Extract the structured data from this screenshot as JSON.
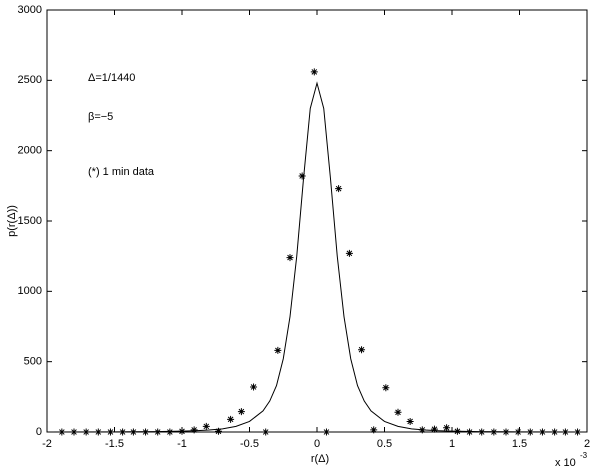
{
  "chart_data": {
    "type": "scatter",
    "xlabel": "r(Δ)",
    "ylabel": "p(r(Δ))",
    "x_scale_base": "x 10",
    "x_scale_exponent": "-3",
    "annotations": [
      "Δ=1/1440",
      "β=−5",
      "(*) 1 min data"
    ],
    "xlim": [
      -2,
      2
    ],
    "xticks": [
      -2,
      -1.5,
      -1,
      -0.5,
      0,
      0.5,
      1,
      1.5,
      2
    ],
    "ylim": [
      0,
      3000
    ],
    "yticks": [
      0,
      500,
      1000,
      1500,
      2000,
      2500,
      3000
    ],
    "series": [
      {
        "type": "scatter",
        "color": "#000000",
        "x": [
          -1.89,
          -1.8,
          -1.71,
          -1.62,
          -1.53,
          -1.44,
          -1.36,
          -1.27,
          -1.18,
          -1.09,
          -1.0,
          -0.91,
          -0.82,
          -0.73,
          -0.64,
          -0.56,
          -0.47,
          -0.38,
          -0.29,
          -0.2,
          -0.11,
          -0.02,
          0.07,
          0.16,
          0.24,
          0.33,
          0.42,
          0.51,
          0.6,
          0.69,
          0.78,
          0.87,
          0.96,
          1.04,
          1.13,
          1.22,
          1.31,
          1.4,
          1.49,
          1.58,
          1.67,
          1.76,
          1.84,
          1.93
        ],
        "values": [
          0,
          0,
          0,
          0,
          0,
          0,
          0,
          0,
          0,
          0,
          5,
          15,
          40,
          5,
          90,
          145,
          320,
          0,
          580,
          1240,
          1820,
          2560,
          0,
          1730,
          1270,
          585,
          15,
          315,
          140,
          75,
          15,
          20,
          30,
          5,
          0,
          0,
          0,
          0,
          0,
          0,
          0,
          0,
          0,
          0
        ]
      },
      {
        "type": "line",
        "color": "#000000",
        "x": [
          -2,
          -1.5,
          -1.2,
          -1,
          -0.9,
          -0.8,
          -0.7,
          -0.6,
          -0.5,
          -0.4,
          -0.35,
          -0.3,
          -0.25,
          -0.2,
          -0.15,
          -0.1,
          -0.05,
          0,
          0.05,
          0.1,
          0.15,
          0.2,
          0.25,
          0.3,
          0.35,
          0.4,
          0.5,
          0.6,
          0.7,
          0.8,
          0.9,
          1,
          1.2,
          1.5,
          2
        ],
        "values": [
          0,
          1,
          3,
          6,
          9,
          14,
          22,
          40,
          75,
          150,
          220,
          330,
          520,
          820,
          1250,
          1800,
          2300,
          2480,
          2300,
          1800,
          1250,
          820,
          520,
          330,
          220,
          150,
          75,
          40,
          22,
          14,
          9,
          6,
          3,
          1,
          0
        ]
      }
    ]
  }
}
